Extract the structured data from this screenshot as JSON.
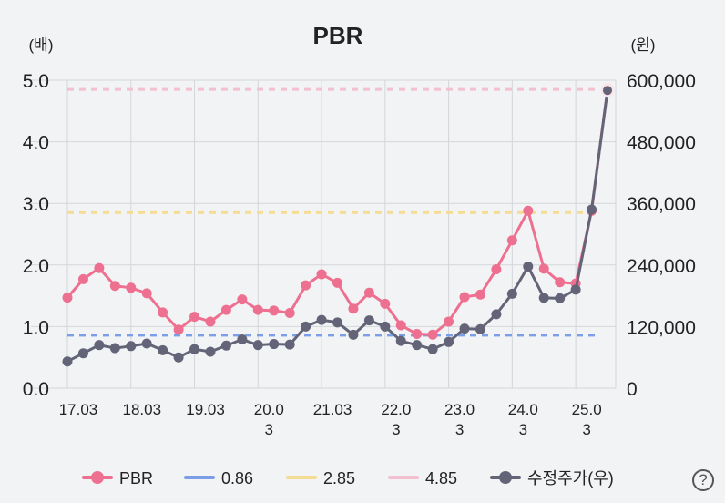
{
  "help_label": "?",
  "chart_data": {
    "type": "line",
    "title": "PBR",
    "left_axis_unit": "(배)",
    "right_axis_unit": "(원)",
    "left_ylim": [
      0,
      5
    ],
    "right_ylim": [
      0,
      600000
    ],
    "left_ticks": [
      "0.0",
      "1.0",
      "2.0",
      "3.0",
      "4.0",
      "5.0"
    ],
    "right_ticks": [
      "0",
      "120,000",
      "240,000",
      "360,000",
      "480,000",
      "600,000"
    ],
    "x_tick_labels": [
      [
        "17.03"
      ],
      [
        "18.03"
      ],
      [
        "19.03"
      ],
      [
        "20.0",
        "3"
      ],
      [
        "21.03"
      ],
      [
        "22.0",
        "3"
      ],
      [
        "23.0",
        "3"
      ],
      [
        "24.0",
        "3"
      ],
      [
        "25.0",
        "3"
      ]
    ],
    "x_tick_indices": [
      0,
      4,
      8,
      12,
      16,
      20,
      24,
      28,
      32
    ],
    "grid": true,
    "legend_position": "bottom",
    "series": [
      {
        "name": "PBR",
        "axis": "left",
        "color": "#ee7090",
        "values": [
          1.47,
          1.77,
          1.95,
          1.66,
          1.63,
          1.54,
          1.23,
          0.95,
          1.16,
          1.08,
          1.27,
          1.44,
          1.27,
          1.26,
          1.22,
          1.67,
          1.85,
          1.71,
          1.29,
          1.55,
          1.37,
          1.02,
          0.88,
          0.87,
          1.08,
          1.48,
          1.52,
          1.93,
          2.4,
          2.88,
          1.94,
          1.72,
          1.7,
          2.88,
          4.85
        ]
      },
      {
        "name": "0.86",
        "axis": "left",
        "color": "#7a9ee8",
        "dashed": true,
        "values": [
          0.86
        ]
      },
      {
        "name": "2.85",
        "axis": "left",
        "color": "#f4dd93",
        "dashed": true,
        "values": [
          2.85
        ]
      },
      {
        "name": "4.85",
        "axis": "left",
        "color": "#f3c0d0",
        "dashed": true,
        "values": [
          4.85
        ]
      },
      {
        "name": "수정주가(우)",
        "axis": "right",
        "color": "#646478",
        "values": [
          52000,
          68000,
          84000,
          78000,
          82000,
          87000,
          74000,
          60000,
          76000,
          71000,
          83000,
          95000,
          84000,
          86000,
          85000,
          120000,
          133000,
          128000,
          104000,
          132000,
          120000,
          92000,
          84000,
          76000,
          90000,
          116000,
          115000,
          144000,
          184000,
          237000,
          176000,
          175000,
          192000,
          348000,
          580000
        ]
      }
    ]
  }
}
